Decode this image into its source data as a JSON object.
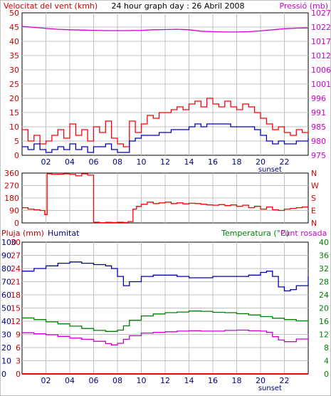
{
  "chart_data": [
    {
      "type": "line",
      "panel": "wind-pressure",
      "title": "24 hour graph day : 26 Abril 2008",
      "left_axis_label": "Velocitat del vent (kmh)",
      "right_axis_label": "Pressió (mb)",
      "left_ticks": [
        "0",
        "5",
        "10",
        "15",
        "20",
        "25",
        "30",
        "35",
        "40",
        "45",
        "50"
      ],
      "left_range": [
        0,
        50
      ],
      "right_ticks": [
        "975",
        "980",
        "985",
        "991",
        "996",
        "1001",
        "1006",
        "1012",
        "1017",
        "1022",
        "1027"
      ],
      "right_range": [
        975,
        1027
      ],
      "x_range": [
        0,
        24
      ],
      "x_ticks": [
        "02",
        "04",
        "06",
        "08",
        "10",
        "12",
        "14",
        "16",
        "18",
        "20",
        "22"
      ],
      "x_tick_hours": [
        2,
        4,
        6,
        8,
        10,
        12,
        14,
        16,
        18,
        20,
        22
      ],
      "sunset_label": "sunset",
      "sunset_hour": 20.8,
      "grid": true,
      "series": [
        {
          "axis": "right",
          "color": "#cc00cc",
          "x": [
            0,
            1,
            2,
            3,
            4,
            5,
            6,
            7,
            8,
            9,
            10,
            11,
            12,
            13,
            14,
            15,
            16,
            17,
            18,
            19,
            20,
            21,
            22,
            23,
            24
          ],
          "values": [
            1022,
            1021.7,
            1021.3,
            1021,
            1020.8,
            1020.7,
            1020.6,
            1020.5,
            1020.5,
            1020.5,
            1020.6,
            1020.8,
            1020.9,
            1021,
            1020.8,
            1020.3,
            1020.1,
            1020,
            1020,
            1020.1,
            1020.4,
            1020.8,
            1021.2,
            1021.4,
            1021.5
          ]
        },
        {
          "axis": "left",
          "name": "gust",
          "color": "#ff0000",
          "x": [
            0,
            0.5,
            1,
            1.5,
            2,
            2.5,
            3,
            3.5,
            4,
            4.5,
            5,
            5.5,
            6,
            6.5,
            7,
            7.5,
            8,
            8.5,
            9,
            9.5,
            10,
            10.5,
            11,
            11.5,
            12,
            12.5,
            13,
            13.5,
            14,
            14.5,
            15,
            15.5,
            16,
            16.5,
            17,
            17.5,
            18,
            18.5,
            19,
            19.5,
            20,
            20.5,
            21,
            21.5,
            22,
            22.5,
            23,
            23.5,
            24
          ],
          "values": [
            9,
            5,
            7,
            4,
            5,
            7,
            9,
            6,
            11,
            7,
            9,
            5,
            10,
            8,
            12,
            6,
            4,
            3,
            12,
            8,
            11,
            14,
            13,
            15,
            15,
            16,
            17,
            16,
            18,
            19,
            17,
            20,
            18,
            17,
            19,
            17,
            16,
            18,
            17,
            15,
            13,
            11,
            9,
            10,
            8,
            7,
            9,
            8,
            9
          ]
        },
        {
          "axis": "left",
          "name": "average",
          "color": "#0000cc",
          "x": [
            0,
            0.5,
            1,
            1.5,
            2,
            2.5,
            3,
            3.5,
            4,
            4.5,
            5,
            5.5,
            6,
            6.5,
            7,
            7.5,
            8,
            8.5,
            9,
            9.5,
            10,
            10.5,
            11,
            11.5,
            12,
            12.5,
            13,
            13.5,
            14,
            14.5,
            15,
            15.5,
            16,
            16.5,
            17,
            17.5,
            18,
            18.5,
            19,
            19.5,
            20,
            20.5,
            21,
            21.5,
            22,
            22.5,
            23,
            23.5,
            24
          ],
          "values": [
            3,
            2,
            4,
            2,
            1,
            2,
            3,
            2,
            4,
            2,
            3,
            1,
            3,
            3,
            4,
            2,
            1,
            1,
            5,
            6,
            7,
            7,
            7,
            8,
            8,
            9,
            9,
            9,
            10,
            11,
            10,
            11,
            11,
            11,
            11,
            10,
            10,
            10,
            10,
            9,
            7,
            5,
            4,
            5,
            4,
            4,
            5,
            5,
            6
          ]
        }
      ]
    },
    {
      "type": "line",
      "panel": "wind-direction",
      "left_ticks": [
        "0",
        "90",
        "180",
        "270",
        "360"
      ],
      "left_range": [
        0,
        360
      ],
      "right_ticks": [
        "N",
        "E",
        "S",
        "W",
        "N"
      ],
      "x_range": [
        0,
        24
      ],
      "grid": true,
      "series": [
        {
          "color": "#ff0000",
          "x": [
            0,
            0.5,
            1,
            1.5,
            1.9,
            2.1,
            2.5,
            3,
            3.5,
            4,
            4.5,
            5,
            5.5,
            6,
            6.5,
            7,
            7.5,
            8,
            8.5,
            8.9,
            9.3,
            9.6,
            10,
            10.5,
            11,
            11.5,
            12,
            12.5,
            13,
            13.5,
            14,
            14.5,
            15,
            15.5,
            16,
            16.5,
            17,
            17.5,
            18,
            18.5,
            19,
            19.5,
            20,
            20.5,
            21,
            21.5,
            22,
            22.5,
            23,
            23.5,
            24
          ],
          "values": [
            110,
            100,
            95,
            90,
            60,
            355,
            350,
            352,
            355,
            350,
            340,
            355,
            345,
            5,
            2,
            4,
            3,
            5,
            3,
            10,
            100,
            120,
            135,
            150,
            140,
            145,
            150,
            140,
            145,
            138,
            142,
            140,
            135,
            130,
            128,
            132,
            125,
            130,
            120,
            128,
            110,
            120,
            100,
            115,
            95,
            90,
            100,
            105,
            110,
            115,
            110
          ]
        }
      ]
    },
    {
      "type": "line",
      "panel": "rain-humidity-temperature",
      "labels": {
        "rain": "Pluja (mm)",
        "humidity": "Humitat",
        "temperature": "Temperatura (°C)",
        "dewpoint": "Punt rosada"
      },
      "humidity_ticks": [
        "0",
        "10",
        "20",
        "30",
        "40",
        "50",
        "60",
        "70",
        "80",
        "90",
        "100"
      ],
      "humidity_range": [
        0,
        100
      ],
      "rain_ticks": [
        "0",
        "3",
        "6",
        "9",
        "12",
        "15",
        "18",
        "21",
        "24",
        "27",
        "30"
      ],
      "rain_range": [
        0,
        30
      ],
      "temperature_ticks": [
        "0",
        "4",
        "8",
        "12",
        "16",
        "20",
        "24",
        "28",
        "32",
        "36",
        "40"
      ],
      "temperature_range": [
        0,
        40
      ],
      "x_range": [
        0,
        24
      ],
      "x_ticks": [
        "02",
        "04",
        "06",
        "08",
        "10",
        "12",
        "14",
        "16",
        "18",
        "20",
        "22"
      ],
      "x_tick_hours": [
        2,
        4,
        6,
        8,
        10,
        12,
        14,
        16,
        18,
        20,
        22
      ],
      "sunset_label": "sunset",
      "sunset_hour": 20.8,
      "grid": true,
      "series": [
        {
          "axis": "humidity",
          "color": "#0000aa",
          "x": [
            0,
            1,
            2,
            3,
            4,
            5,
            6,
            7,
            7.5,
            8,
            8.5,
            9,
            10,
            11,
            12,
            13,
            14,
            15,
            16,
            17,
            18,
            19,
            20,
            20.5,
            21,
            21.5,
            22,
            22.5,
            23,
            24
          ],
          "values": [
            78,
            80,
            82,
            84,
            85,
            84,
            83,
            82,
            80,
            74,
            67,
            70,
            74,
            75,
            75,
            74,
            73,
            73,
            74,
            74,
            74,
            75,
            77,
            78,
            74,
            66,
            63,
            64,
            67,
            74
          ]
        },
        {
          "axis": "temperature",
          "color": "#008000",
          "x": [
            0,
            1,
            2,
            3,
            4,
            5,
            6,
            7,
            8,
            8.5,
            9,
            10,
            11,
            12,
            13,
            14,
            15,
            16,
            17,
            18,
            19,
            20,
            21,
            22,
            23,
            24
          ],
          "values": [
            17,
            16.5,
            15.8,
            15.2,
            14.5,
            13.8,
            13.2,
            12.9,
            13.3,
            14.6,
            16.3,
            17.6,
            18.2,
            18.6,
            18.8,
            19.1,
            19,
            18.7,
            18.6,
            18.3,
            17.9,
            17.4,
            16.9,
            16.5,
            16.1,
            15.6
          ]
        },
        {
          "axis": "temperature",
          "color": "#cc00cc",
          "x": [
            0,
            1,
            2,
            3,
            4,
            5,
            6,
            7,
            7.5,
            8,
            8.5,
            9,
            10,
            11,
            12,
            13,
            14,
            15,
            16,
            17,
            18,
            19,
            20,
            20.5,
            21,
            21.5,
            22,
            23,
            24
          ],
          "values": [
            12.5,
            12.2,
            11.9,
            11.4,
            10.9,
            10.5,
            9.9,
            9.2,
            8.8,
            9.3,
            10.5,
            11.6,
            12.4,
            12.6,
            12.8,
            13,
            13.1,
            13,
            13,
            13.2,
            13.3,
            13.1,
            13,
            12.6,
            11.3,
            10.3,
            9.8,
            10.6,
            11.4
          ]
        },
        {
          "axis": "rain",
          "color": "#ff0000",
          "x": [
            0,
            24
          ],
          "values": [
            0,
            0
          ]
        }
      ]
    }
  ]
}
